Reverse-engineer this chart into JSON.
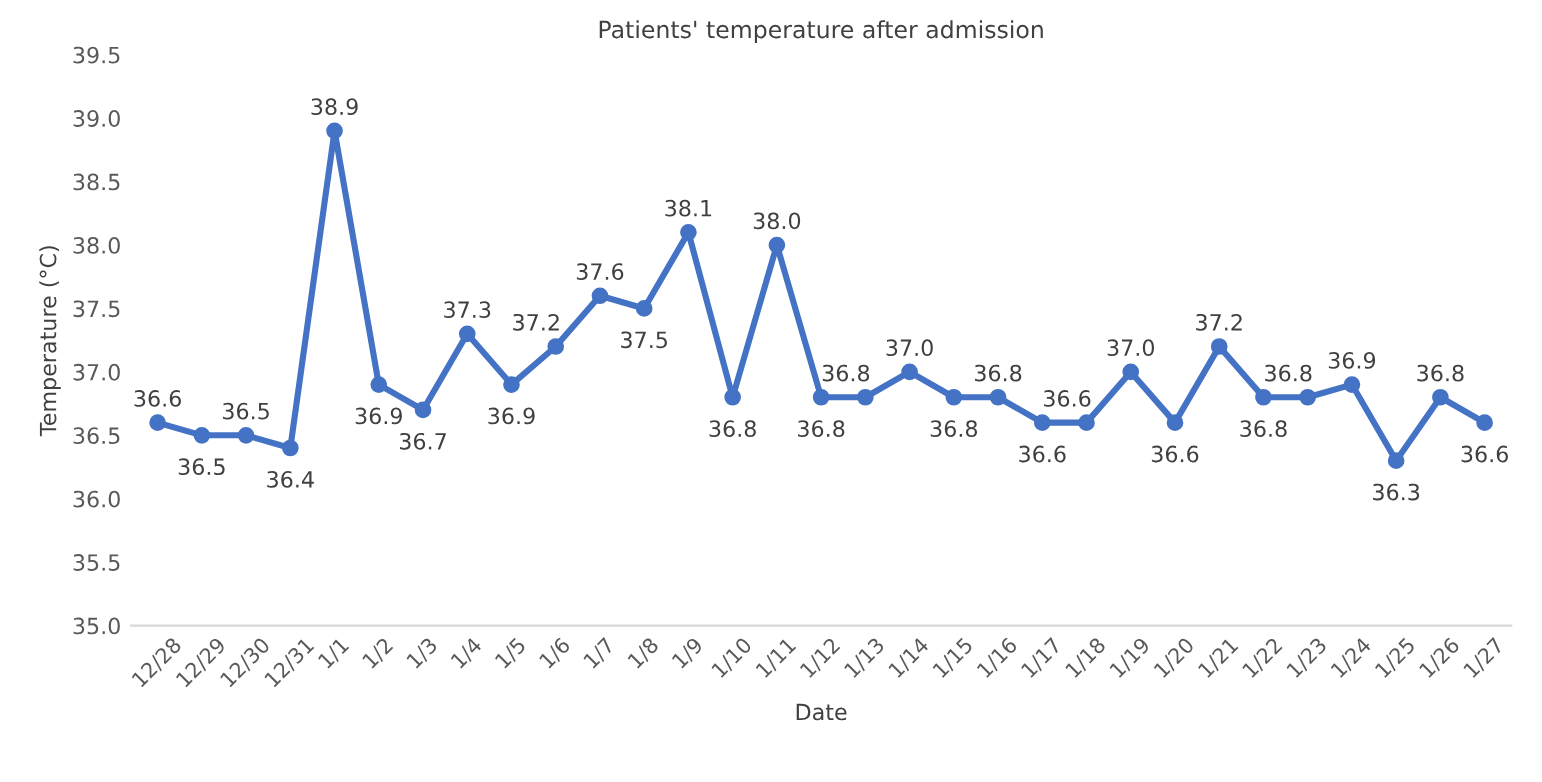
{
  "chart_data": {
    "type": "line",
    "title": "Patients' temperature after admission",
    "xlabel": "Date",
    "ylabel": "Temperature (°C)",
    "categories": [
      "12/28",
      "12/29",
      "12/30",
      "12/31",
      "1/1",
      "1/2",
      "1/3",
      "1/4",
      "1/5",
      "1/6",
      "1/7",
      "1/8",
      "1/9",
      "1/10",
      "1/11",
      "1/12",
      "1/13",
      "1/14",
      "1/15",
      "1/16",
      "1/17",
      "1/18",
      "1/19",
      "1/20",
      "1/21",
      "1/22",
      "1/23",
      "1/24",
      "1/25",
      "1/26",
      "1/27"
    ],
    "values": [
      36.6,
      36.5,
      36.5,
      36.4,
      38.9,
      36.9,
      36.7,
      37.3,
      36.9,
      37.2,
      37.6,
      37.5,
      38.1,
      36.8,
      38.0,
      36.8,
      36.8,
      37.0,
      36.8,
      36.8,
      36.6,
      36.6,
      37.0,
      36.6,
      37.2,
      36.8,
      36.8,
      36.9,
      36.3,
      36.8,
      36.6
    ],
    "value_labels": [
      "36.6",
      "36.5",
      "36.5",
      "36.4",
      "38.9",
      "36.9",
      "36.7",
      "37.3",
      "36.9",
      "37.2",
      "37.6",
      "37.5",
      "38.1",
      "36.8",
      "38.0",
      "36.8",
      "36.8",
      "37.0",
      "36.8",
      "36.8",
      "36.6",
      "36.6",
      "37.0",
      "36.6",
      "37.2",
      "36.8",
      "36.8",
      "36.9",
      "36.3",
      "36.8",
      "36.6"
    ],
    "color": "#4472c4",
    "marker": "circle",
    "line_style": "solid",
    "ylim": [
      35.0,
      39.5
    ],
    "yticks": [
      {
        "value": 35.0,
        "label": "35.0"
      },
      {
        "value": 35.5,
        "label": "35.5"
      },
      {
        "value": 36.0,
        "label": "36.0"
      },
      {
        "value": 36.5,
        "label": "36.5"
      },
      {
        "value": 37.0,
        "label": "37.0"
      },
      {
        "value": 37.5,
        "label": "37.5"
      },
      {
        "value": 38.0,
        "label": "38.0"
      },
      {
        "value": 38.5,
        "label": "38.5"
      },
      {
        "value": 39.0,
        "label": "39.0"
      },
      {
        "value": 39.5,
        "label": "39.5"
      }
    ],
    "grid": false,
    "legend": false
  }
}
